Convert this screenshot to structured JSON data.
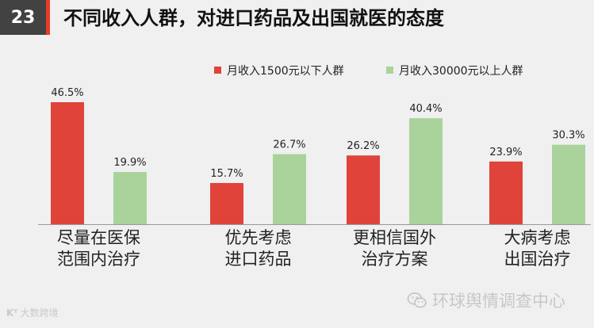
{
  "slide": {
    "number": "23",
    "title": "不同收入人群，对进口药品及出国就医的态度"
  },
  "watermark": {
    "text": "环球舆情调查中心",
    "icon": "wechat-icon"
  },
  "brand": {
    "logo": "Kᵀ",
    "text": "大数跨境"
  },
  "colors": {
    "low_income": "#e0433a",
    "high_income": "#a9d39a",
    "accent": "#e63b2e",
    "header_bg": "#424242"
  },
  "chart_data": {
    "type": "bar",
    "title": "不同收入人群，对进口药品及出国就医的态度",
    "categories": [
      [
        "尽量在医保",
        "范围内治疗"
      ],
      [
        "优先考虑",
        "进口药品"
      ],
      [
        "更相信国外",
        "治疗方案"
      ],
      [
        "大病考虑",
        "出国治疗"
      ]
    ],
    "series": [
      {
        "name": "月收入1500元以下人群",
        "values": [
          46.5,
          15.7,
          26.2,
          23.9
        ],
        "labels": [
          "46.5%",
          "15.7%",
          "26.2%",
          "23.9%"
        ],
        "color": "#e0433a"
      },
      {
        "name": "月收入30000元以上人群",
        "values": [
          19.9,
          26.7,
          40.4,
          30.3
        ],
        "labels": [
          "19.9%",
          "26.7%",
          "40.4%",
          "30.3%"
        ],
        "color": "#a9d39a"
      }
    ],
    "ylim": [
      0,
      46.5
    ],
    "xlabel": "",
    "ylabel": "",
    "grid": false,
    "legend": "top-right"
  }
}
